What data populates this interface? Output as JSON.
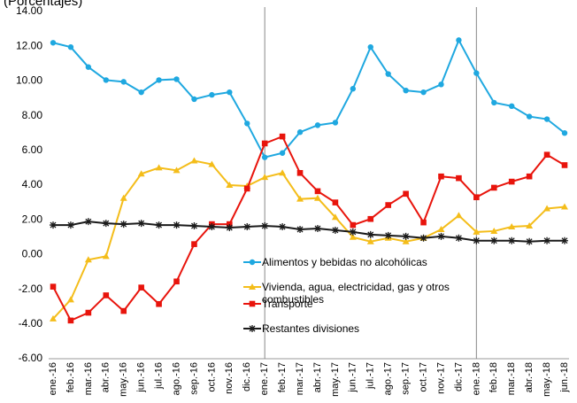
{
  "chart_data": {
    "type": "line",
    "subtitle": "(Porcentajes)",
    "categories": [
      "ene.-16",
      "feb.-16",
      "mar.-16",
      "abr.-16",
      "may.-16",
      "jun.-16",
      "jul.-16",
      "ago.-16",
      "sep.-16",
      "oct.-16",
      "nov.-16",
      "dic.-16",
      "ene.-17",
      "feb.-17",
      "mar.-17",
      "abr.-17",
      "may.-17",
      "jun.-17",
      "jul.-17",
      "ago.-17",
      "sep.-17",
      "oct.-17",
      "nov.-17",
      "dic.-17",
      "ene.-18",
      "feb.-18",
      "mar.-18",
      "abr.-18",
      "may.-18",
      "jun.-18"
    ],
    "series": [
      {
        "name": "Alimentos y bebidas no alcohólicas",
        "color": "#1fa8e0",
        "marker": "circle",
        "values": [
          12.2,
          11.95,
          10.8,
          10.05,
          9.95,
          9.35,
          10.05,
          10.1,
          8.95,
          9.2,
          9.35,
          7.55,
          5.6,
          5.85,
          7.05,
          7.45,
          7.6,
          9.55,
          11.95,
          10.4,
          9.45,
          9.35,
          9.8,
          12.35,
          10.45,
          8.75,
          8.55,
          7.95,
          7.8,
          7.0
        ]
      },
      {
        "name": "Vivienda, agua, electricidad, gas y otros combustibles",
        "color": "#f4bd1a",
        "marker": "triangle",
        "values": [
          -3.7,
          -2.6,
          -0.3,
          -0.1,
          3.25,
          4.65,
          5.0,
          4.85,
          5.4,
          5.2,
          4.0,
          3.95,
          4.45,
          4.7,
          3.2,
          3.25,
          2.15,
          1.0,
          0.75,
          0.95,
          0.75,
          0.95,
          1.45,
          2.25,
          1.3,
          1.35,
          1.6,
          1.65,
          2.65,
          2.75
        ]
      },
      {
        "name": "Transporte",
        "color": "#e8140c",
        "marker": "square",
        "values": [
          -1.85,
          -3.8,
          -3.35,
          -2.35,
          -3.25,
          -1.9,
          -2.85,
          -1.55,
          0.6,
          1.75,
          1.75,
          3.8,
          6.4,
          6.8,
          4.7,
          3.65,
          3.0,
          1.7,
          2.05,
          2.85,
          3.5,
          1.85,
          4.5,
          4.4,
          3.3,
          3.85,
          4.2,
          4.5,
          5.75,
          5.15
        ]
      },
      {
        "name": "Restantes divisiones",
        "color": "#1a1a1a",
        "marker": "star",
        "values": [
          1.7,
          1.7,
          1.9,
          1.8,
          1.75,
          1.8,
          1.7,
          1.7,
          1.65,
          1.6,
          1.55,
          1.6,
          1.65,
          1.6,
          1.45,
          1.5,
          1.4,
          1.3,
          1.15,
          1.1,
          1.05,
          0.95,
          1.05,
          0.95,
          0.8,
          0.8,
          0.8,
          0.75,
          0.8,
          0.8
        ]
      }
    ],
    "ylim": [
      -6,
      14
    ],
    "yticks": [
      {
        "value": -6,
        "label": "-6.00"
      },
      {
        "value": -4,
        "label": "-4.00"
      },
      {
        "value": -2,
        "label": "-2.00"
      },
      {
        "value": 0,
        "label": "0.00"
      },
      {
        "value": 2,
        "label": "2.00"
      },
      {
        "value": 4,
        "label": "4.00"
      },
      {
        "value": 6,
        "label": "6.00"
      },
      {
        "value": 8,
        "label": "8.00"
      },
      {
        "value": 10,
        "label": "10.00"
      },
      {
        "value": 12,
        "label": "12.00"
      },
      {
        "value": 14,
        "label": "14.00"
      }
    ],
    "grid": false
  }
}
